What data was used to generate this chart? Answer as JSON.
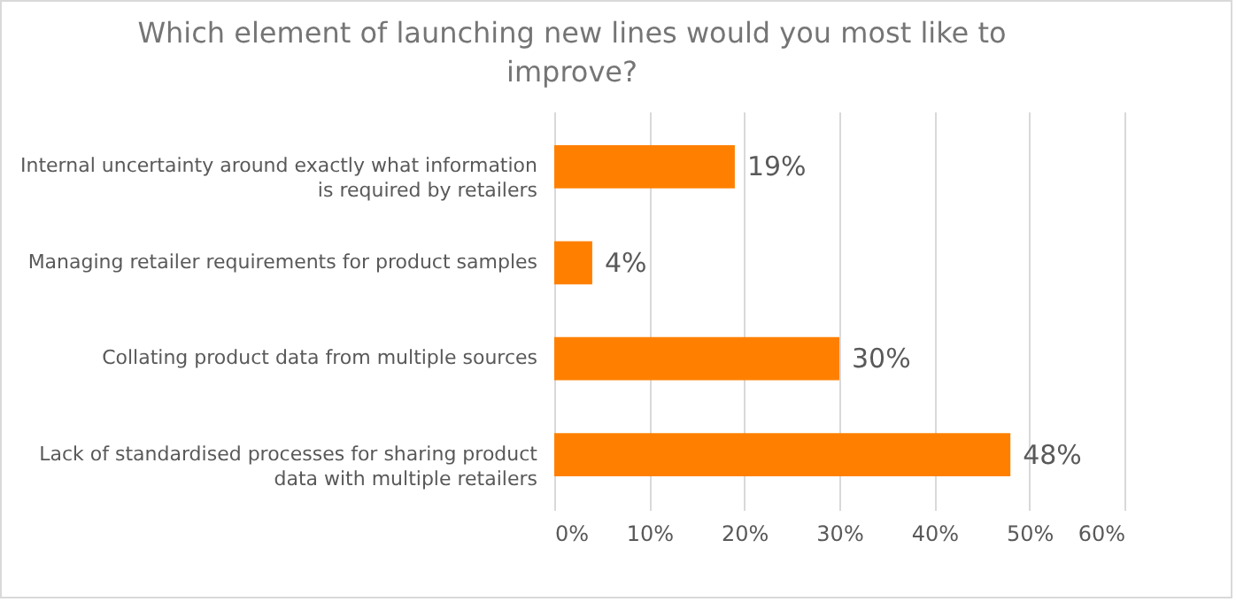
{
  "chart_data": {
    "type": "bar",
    "orientation": "horizontal",
    "title": "Which element of launching new lines would you most like to improve?",
    "categories": [
      "Internal uncertainty around exactly what information is required by retailers",
      "Managing retailer requirements for product samples",
      "Collating product data from multiple sources",
      "Lack of standardised processes for sharing product data with multiple retailers"
    ],
    "values": [
      19,
      4,
      30,
      48
    ],
    "value_labels": [
      "19%",
      "4%",
      "30%",
      "48%"
    ],
    "color": "#ff8000",
    "xlim": [
      0,
      60
    ],
    "xticks": [
      {
        "value": 0,
        "label": "0%"
      },
      {
        "value": 10,
        "label": "10%"
      },
      {
        "value": 20,
        "label": "20%"
      },
      {
        "value": 30,
        "label": "30%"
      },
      {
        "value": 40,
        "label": "40%"
      },
      {
        "value": 50,
        "label": "50%"
      },
      {
        "value": 60,
        "label": "60%"
      }
    ],
    "grid": "x"
  }
}
